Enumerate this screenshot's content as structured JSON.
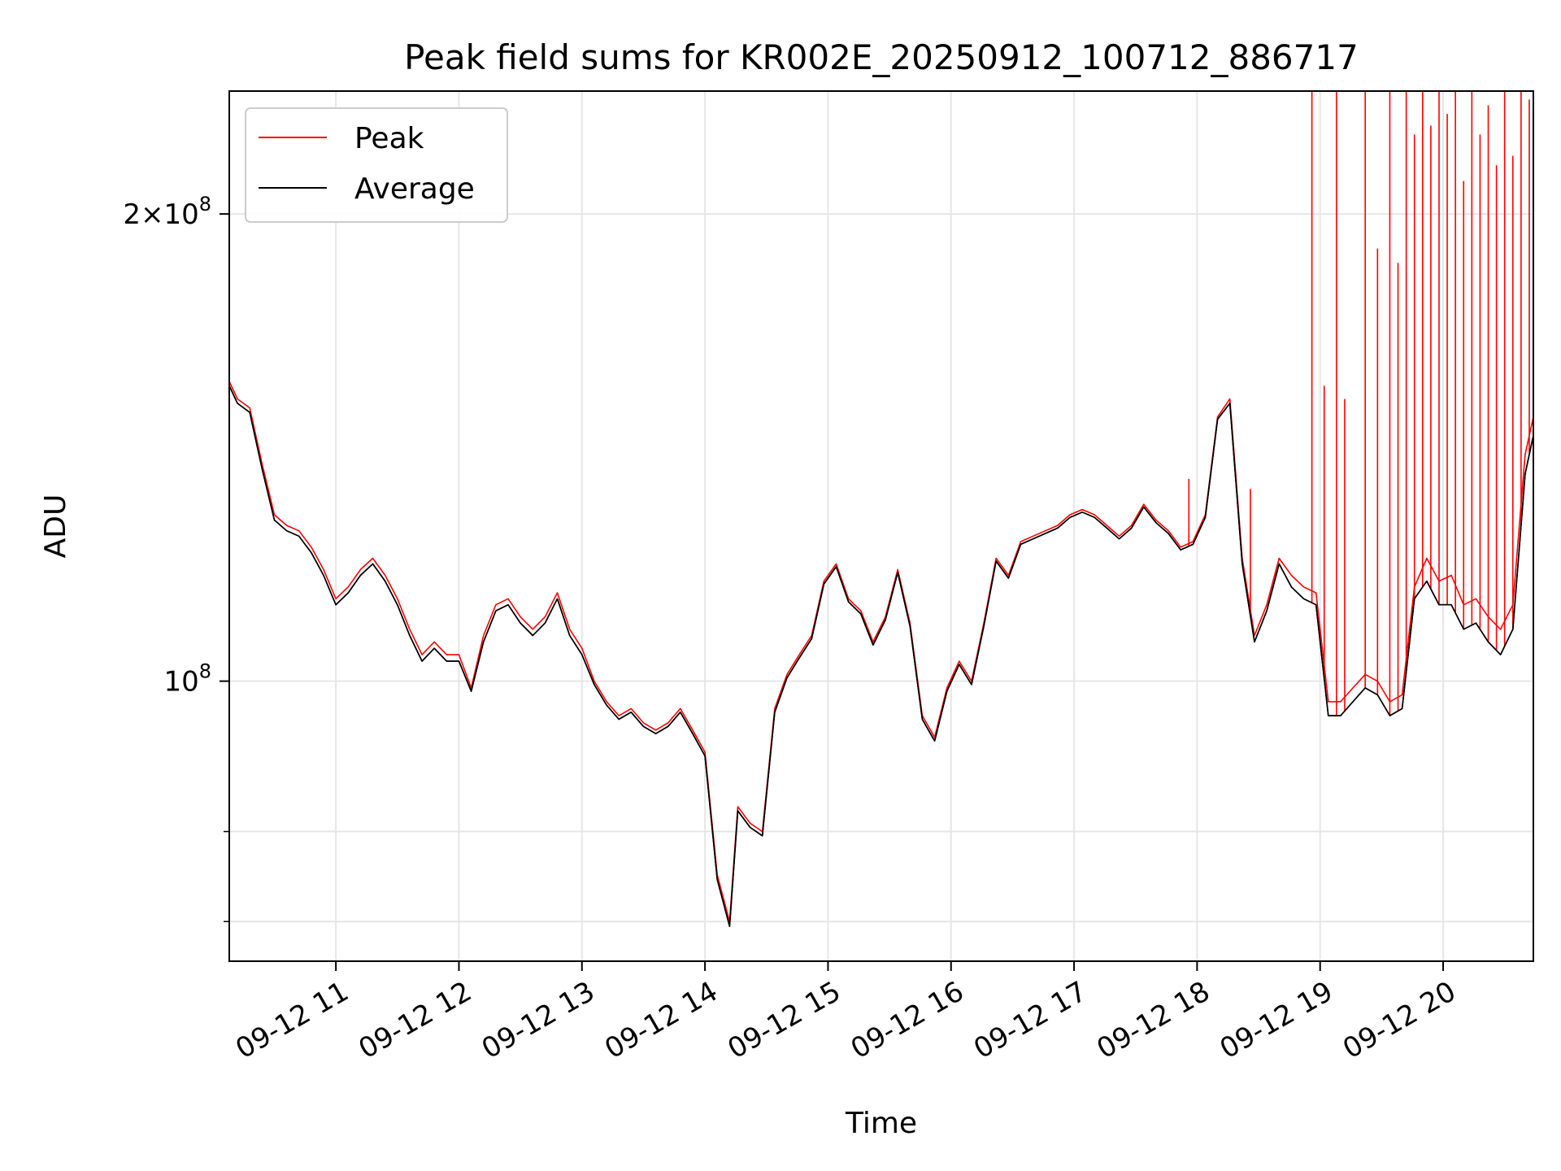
{
  "chart_data": {
    "type": "line",
    "title": "Peak field sums for KR002E_20250912_100712_886717",
    "xlabel": "Time",
    "ylabel": "ADU",
    "y_scale": "log",
    "x_range": [
      "09-12 10:08",
      "09-12 20:44"
    ],
    "ylim": [
      66000000,
      240000000
    ],
    "grid": true,
    "legend_position": "upper-left",
    "x_ticks": [
      "09-12 11",
      "09-12 12",
      "09-12 13",
      "09-12 14",
      "09-12 15",
      "09-12 16",
      "09-12 17",
      "09-12 18",
      "09-12 19",
      "09-12 20"
    ],
    "y_ticks": [
      {
        "label_base": "2",
        "label_times": "×",
        "label_mant": "10",
        "label_exp": "8",
        "value": 200000000
      },
      {
        "label_base": "",
        "label_times": "",
        "label_mant": "10",
        "label_exp": "8",
        "value": 100000000
      }
    ],
    "y_minor_ticks": [
      70000000,
      80000000,
      300000000
    ],
    "series": [
      {
        "name": "Peak",
        "color": "#ff0000",
        "x": [
          "09-12 10:08",
          "09-12 10:12",
          "09-12 10:18",
          "09-12 10:24",
          "09-12 10:30",
          "09-12 10:36",
          "09-12 10:42",
          "09-12 10:48",
          "09-12 10:54",
          "09-12 11:00",
          "09-12 11:06",
          "09-12 11:12",
          "09-12 11:18",
          "09-12 11:24",
          "09-12 11:30",
          "09-12 11:36",
          "09-12 11:42",
          "09-12 11:48",
          "09-12 11:54",
          "09-12 12:00",
          "09-12 12:06",
          "09-12 12:12",
          "09-12 12:18",
          "09-12 12:24",
          "09-12 12:30",
          "09-12 12:36",
          "09-12 12:42",
          "09-12 12:48",
          "09-12 12:54",
          "09-12 13:00",
          "09-12 13:06",
          "09-12 13:12",
          "09-12 13:18",
          "09-12 13:24",
          "09-12 13:30",
          "09-12 13:36",
          "09-12 13:42",
          "09-12 13:48",
          "09-12 13:54",
          "09-12 14:00",
          "09-12 14:06",
          "09-12 14:12",
          "09-12 14:16",
          "09-12 14:22",
          "09-12 14:28",
          "09-12 14:34",
          "09-12 14:40",
          "09-12 14:46",
          "09-12 14:52",
          "09-12 14:58",
          "09-12 15:04",
          "09-12 15:10",
          "09-12 15:16",
          "09-12 15:22",
          "09-12 15:28",
          "09-12 15:34",
          "09-12 15:40",
          "09-12 15:46",
          "09-12 15:52",
          "09-12 15:58",
          "09-12 16:04",
          "09-12 16:10",
          "09-12 16:16",
          "09-12 16:22",
          "09-12 16:28",
          "09-12 16:34",
          "09-12 16:40",
          "09-12 16:46",
          "09-12 16:52",
          "09-12 16:58",
          "09-12 17:04",
          "09-12 17:10",
          "09-12 17:16",
          "09-12 17:22",
          "09-12 17:28",
          "09-12 17:34",
          "09-12 17:40",
          "09-12 17:46",
          "09-12 17:52",
          "09-12 17:58",
          "09-12 18:04",
          "09-12 18:10",
          "09-12 18:16",
          "09-12 18:22",
          "09-12 18:28",
          "09-12 18:34",
          "09-12 18:40",
          "09-12 18:46",
          "09-12 18:52",
          "09-12 18:58",
          "09-12 19:04",
          "09-12 19:10",
          "09-12 19:16",
          "09-12 19:22",
          "09-12 19:28",
          "09-12 19:34",
          "09-12 19:40",
          "09-12 19:46",
          "09-12 19:52",
          "09-12 19:58",
          "09-12 20:04",
          "09-12 20:10",
          "09-12 20:16",
          "09-12 20:22",
          "09-12 20:28",
          "09-12 20:34",
          "09-12 20:40",
          "09-12 20:44"
        ],
        "y": [
          156000000,
          152000000,
          150000000,
          138000000,
          128000000,
          126000000,
          125000000,
          122000000,
          118000000,
          113000000,
          115000000,
          118000000,
          120000000,
          117000000,
          113000000,
          108000000,
          104000000,
          106000000,
          104000000,
          104000000,
          99000000,
          107000000,
          112000000,
          113000000,
          110000000,
          108000000,
          110000000,
          114000000,
          108000000,
          105000000,
          100000000,
          97000000,
          95000000,
          96000000,
          94000000,
          93000000,
          94000000,
          96000000,
          93000000,
          90000000,
          75000000,
          70000000,
          83000000,
          81000000,
          80000000,
          96000000,
          101000000,
          104000000,
          107000000,
          116000000,
          119000000,
          113000000,
          111000000,
          106000000,
          110000000,
          118000000,
          109000000,
          95000000,
          92000000,
          99000000,
          103000000,
          100000000,
          109000000,
          120000000,
          117000000,
          123000000,
          124000000,
          125000000,
          126000000,
          128000000,
          129000000,
          128000000,
          126000000,
          124000000,
          126000000,
          130000000,
          127000000,
          125000000,
          122000000,
          123000000,
          128000000,
          148000000,
          152000000,
          120000000,
          107000000,
          112000000,
          120000000,
          117000000,
          115000000,
          114000000,
          97000000,
          97000000,
          99000000,
          101000000,
          100000000,
          97000000,
          98000000,
          115000000,
          120000000,
          116000000,
          117000000,
          112000000,
          113000000,
          110000000,
          108000000,
          112000000,
          140000000,
          148000000
        ]
      },
      {
        "name": "Average",
        "color": "#000000",
        "x": [
          "09-12 10:08",
          "09-12 10:12",
          "09-12 10:18",
          "09-12 10:24",
          "09-12 10:30",
          "09-12 10:36",
          "09-12 10:42",
          "09-12 10:48",
          "09-12 10:54",
          "09-12 11:00",
          "09-12 11:06",
          "09-12 11:12",
          "09-12 11:18",
          "09-12 11:24",
          "09-12 11:30",
          "09-12 11:36",
          "09-12 11:42",
          "09-12 11:48",
          "09-12 11:54",
          "09-12 12:00",
          "09-12 12:06",
          "09-12 12:12",
          "09-12 12:18",
          "09-12 12:24",
          "09-12 12:30",
          "09-12 12:36",
          "09-12 12:42",
          "09-12 12:48",
          "09-12 12:54",
          "09-12 13:00",
          "09-12 13:06",
          "09-12 13:12",
          "09-12 13:18",
          "09-12 13:24",
          "09-12 13:30",
          "09-12 13:36",
          "09-12 13:42",
          "09-12 13:48",
          "09-12 13:54",
          "09-12 14:00",
          "09-12 14:06",
          "09-12 14:12",
          "09-12 14:16",
          "09-12 14:22",
          "09-12 14:28",
          "09-12 14:34",
          "09-12 14:40",
          "09-12 14:46",
          "09-12 14:52",
          "09-12 14:58",
          "09-12 15:04",
          "09-12 15:10",
          "09-12 15:16",
          "09-12 15:22",
          "09-12 15:28",
          "09-12 15:34",
          "09-12 15:40",
          "09-12 15:46",
          "09-12 15:52",
          "09-12 15:58",
          "09-12 16:04",
          "09-12 16:10",
          "09-12 16:16",
          "09-12 16:22",
          "09-12 16:28",
          "09-12 16:34",
          "09-12 16:40",
          "09-12 16:46",
          "09-12 16:52",
          "09-12 16:58",
          "09-12 17:04",
          "09-12 17:10",
          "09-12 17:16",
          "09-12 17:22",
          "09-12 17:28",
          "09-12 17:34",
          "09-12 17:40",
          "09-12 17:46",
          "09-12 17:52",
          "09-12 17:58",
          "09-12 18:04",
          "09-12 18:10",
          "09-12 18:16",
          "09-12 18:22",
          "09-12 18:28",
          "09-12 18:34",
          "09-12 18:40",
          "09-12 18:46",
          "09-12 18:52",
          "09-12 18:58",
          "09-12 19:04",
          "09-12 19:10",
          "09-12 19:16",
          "09-12 19:22",
          "09-12 19:28",
          "09-12 19:34",
          "09-12 19:40",
          "09-12 19:46",
          "09-12 19:52",
          "09-12 19:58",
          "09-12 20:04",
          "09-12 20:10",
          "09-12 20:16",
          "09-12 20:22",
          "09-12 20:28",
          "09-12 20:34",
          "09-12 20:40",
          "09-12 20:44"
        ],
        "y": [
          155000000,
          151000000,
          149000000,
          137000000,
          127000000,
          125000000,
          124000000,
          121000000,
          117000000,
          112000000,
          114000000,
          117000000,
          119000000,
          116000000,
          112000000,
          107000000,
          103000000,
          105000000,
          103000000,
          103000000,
          98500000,
          106000000,
          111000000,
          112000000,
          109000000,
          107000000,
          109000000,
          113000000,
          107000000,
          104000000,
          99500000,
          96500000,
          94500000,
          95500000,
          93500000,
          92500000,
          93500000,
          95500000,
          92500000,
          89500000,
          74500000,
          69500000,
          82500000,
          80500000,
          79500000,
          95500000,
          100500000,
          103500000,
          106500000,
          115500000,
          118500000,
          112500000,
          110500000,
          105500000,
          109500000,
          117500000,
          108500000,
          94500000,
          91500000,
          98500000,
          102500000,
          99500000,
          108500000,
          119500000,
          116500000,
          122500000,
          123500000,
          124500000,
          125500000,
          127500000,
          128500000,
          127500000,
          125500000,
          123500000,
          125500000,
          129500000,
          126500000,
          124500000,
          121500000,
          122500000,
          127500000,
          147500000,
          151000000,
          119000000,
          106000000,
          111000000,
          119000000,
          115000000,
          113000000,
          112000000,
          95000000,
          95000000,
          97000000,
          99000000,
          98000000,
          95000000,
          96000000,
          113000000,
          116000000,
          112000000,
          112000000,
          108000000,
          109000000,
          106000000,
          104000000,
          108000000,
          136000000,
          144000000
        ]
      }
    ],
    "spikes": {
      "series": "Peak",
      "x": [
        "09-12 17:56",
        "09-12 18:26",
        "09-12 18:56",
        "09-12 19:02",
        "09-12 19:08",
        "09-12 19:12",
        "09-12 19:22",
        "09-12 19:28",
        "09-12 19:34",
        "09-12 19:38",
        "09-12 19:42",
        "09-12 19:46",
        "09-12 19:50",
        "09-12 19:54",
        "09-12 19:58",
        "09-12 20:02",
        "09-12 20:06",
        "09-12 20:10",
        "09-12 20:14",
        "09-12 20:18",
        "09-12 20:22",
        "09-12 20:26",
        "09-12 20:30",
        "09-12 20:34",
        "09-12 20:38",
        "09-12 20:42"
      ],
      "y": [
        135000000,
        133000000,
        240000000,
        155000000,
        240000000,
        152000000,
        240000000,
        190000000,
        240000000,
        186000000,
        240000000,
        225000000,
        240000000,
        228000000,
        240000000,
        232000000,
        240000000,
        210000000,
        240000000,
        225000000,
        235000000,
        215000000,
        240000000,
        218000000,
        240000000,
        237000000
      ]
    }
  }
}
